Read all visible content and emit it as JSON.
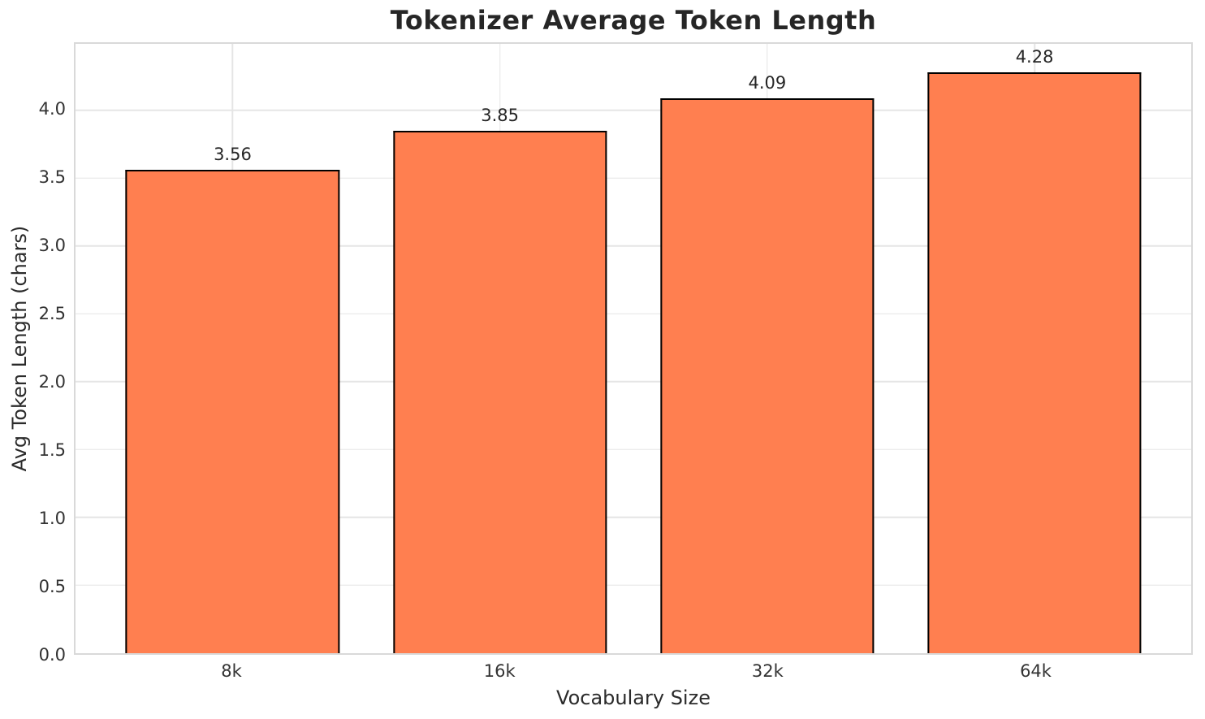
{
  "chart_data": {
    "type": "bar",
    "title": "Tokenizer Average Token Length",
    "xlabel": "Vocabulary Size",
    "ylabel": "Avg Token Length (chars)",
    "categories": [
      "8k",
      "16k",
      "32k",
      "64k"
    ],
    "values": [
      3.56,
      3.85,
      4.09,
      4.28
    ],
    "value_labels": [
      "3.56",
      "3.85",
      "4.09",
      "4.28"
    ],
    "yticks": [
      0.0,
      0.5,
      1.0,
      1.5,
      2.0,
      2.5,
      3.0,
      3.5,
      4.0
    ],
    "ytick_labels": [
      "0.0",
      "0.5",
      "1.0",
      "1.5",
      "2.0",
      "2.5",
      "3.0",
      "3.5",
      "4.0"
    ],
    "ylim": [
      0,
      4.49
    ],
    "grid": "both",
    "legend": "none",
    "bar_color": "#FF7F50",
    "bar_edge_color": "#000000",
    "grid_color": "#e5e5e5",
    "spine_color": "#d9d9d9",
    "title_color": "#262626",
    "tick_color": "#333333"
  }
}
